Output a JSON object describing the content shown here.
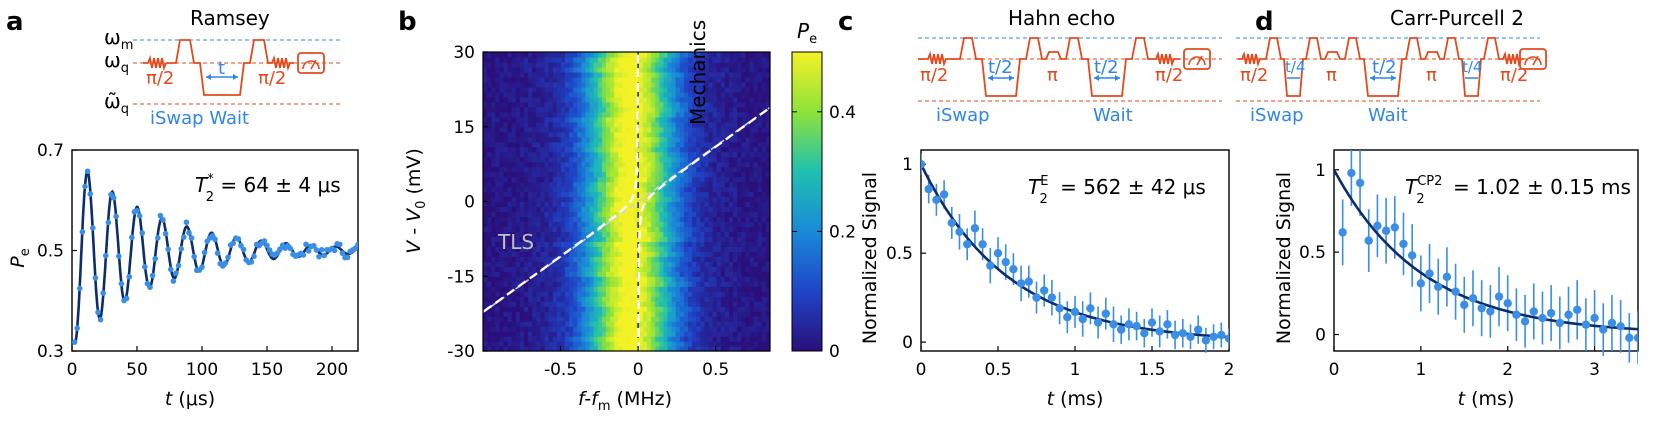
{
  "colors": {
    "data": "#3a8ee6",
    "fit": "#0c2d6b",
    "seq_red": "#e24a1e",
    "seq_blue": "#2f86e6"
  },
  "labels": {
    "omega_m": "ω",
    "omega_m_sub": "m",
    "omega_q": "ω",
    "omega_q_sub": "q",
    "omega_q_tilde": "ω̃",
    "omega_q_tilde_sub": "q",
    "pi2": "π/2",
    "pi": "π",
    "t": "t",
    "t2": "t/2",
    "t4": "t/4",
    "iswap": "iSwap",
    "wait": "Wait",
    "iswap_wait": "iSwap Wait"
  },
  "chart_data": [
    {
      "id": "a",
      "panel_label": "a",
      "type": "scatter",
      "title": "Ramsey",
      "xlabel": "t (μs)",
      "xlabel_italic": "t",
      "xlabel_unit": " (μs)",
      "ylabel": "P",
      "ylabel_sub": "e",
      "xlim": [
        0,
        220
      ],
      "ylim": [
        0.3,
        0.7
      ],
      "xticks": [
        0,
        50,
        100,
        150,
        200
      ],
      "yticks": [
        0.3,
        0.5,
        0.7
      ],
      "ytick_labels": [
        "0.3",
        "0.5",
        "0.7"
      ],
      "annotation": {
        "sym": "T",
        "sup": "*",
        "sub": "2",
        "text": " = 64 ± 4 μs"
      },
      "fit": {
        "offset": 0.5,
        "amplitude": 0.19,
        "T2": 64,
        "period": 19.1,
        "phase_at": 12
      },
      "series": [
        {
          "name": "data",
          "x_start": 2,
          "x_step": 2,
          "count": 110
        }
      ]
    },
    {
      "id": "b",
      "panel_label": "b",
      "type": "heatmap",
      "xlabel": "f-f",
      "xlabel_sub": "m",
      "xlabel_unit": " (MHz)",
      "ylabel": "V - V",
      "ylabel_sub": "0",
      "ylabel_unit": " (mV)",
      "xlim": [
        -1.0,
        0.85
      ],
      "ylim": [
        -30,
        30
      ],
      "xticks": [
        -0.5,
        0,
        0.5
      ],
      "xtick_labels": [
        "-0.5",
        "0",
        "0.5"
      ],
      "yticks": [
        -30,
        -15,
        0,
        15,
        30
      ],
      "ytick_labels": [
        "-30",
        "-15",
        "0",
        "15",
        "30"
      ],
      "colorbar": {
        "label": "P",
        "label_sub": "e",
        "min": 0,
        "max": 0.5,
        "ticks": [
          0,
          0.2,
          0.4
        ],
        "tick_labels": [
          "0",
          "0.2",
          "0.4"
        ]
      },
      "annotations": {
        "mechanics": "Mechanics",
        "tls": "TLS"
      }
    },
    {
      "id": "c",
      "panel_label": "c",
      "type": "scatter",
      "title": "Hahn echo",
      "xlabel_italic": "t",
      "xlabel_unit": " (ms)",
      "ylabel": "Normalized Signal",
      "xlim": [
        0,
        2
      ],
      "ylim": [
        -0.05,
        1.08
      ],
      "xticks": [
        0,
        0.5,
        1,
        1.5,
        2
      ],
      "xtick_labels": [
        "0",
        "0.5",
        "1",
        "1.5",
        "2"
      ],
      "yticks": [
        0,
        0.5,
        1
      ],
      "ytick_labels": [
        "0",
        "0.5",
        "1"
      ],
      "annotation": {
        "sym": "T",
        "sup": "E",
        "sub": "2",
        "text": " = 562 ± 42 μs"
      },
      "fit": {
        "T2": 0.562
      },
      "x": [
        0,
        0.05,
        0.1,
        0.15,
        0.2,
        0.25,
        0.3,
        0.35,
        0.4,
        0.45,
        0.5,
        0.55,
        0.6,
        0.65,
        0.7,
        0.75,
        0.8,
        0.85,
        0.9,
        0.95,
        1.0,
        1.05,
        1.1,
        1.15,
        1.2,
        1.25,
        1.3,
        1.35,
        1.4,
        1.45,
        1.5,
        1.55,
        1.6,
        1.65,
        1.7,
        1.75,
        1.8,
        1.85,
        1.9,
        1.95,
        2.0
      ],
      "y": [
        1.0,
        0.86,
        0.8,
        0.83,
        0.67,
        0.62,
        0.55,
        0.64,
        0.55,
        0.43,
        0.5,
        0.45,
        0.41,
        0.33,
        0.34,
        0.25,
        0.29,
        0.25,
        0.19,
        0.14,
        0.17,
        0.13,
        0.19,
        0.11,
        0.16,
        0.1,
        0.07,
        0.1,
        0.09,
        0.05,
        0.11,
        0.06,
        0.1,
        0.04,
        0.05,
        0.03,
        0.07,
        0.01,
        0.03,
        0.04,
        0.02
      ],
      "err": [
        0.06,
        0.08,
        0.09,
        0.08,
        0.09,
        0.1,
        0.09,
        0.1,
        0.09,
        0.1,
        0.09,
        0.1,
        0.09,
        0.1,
        0.09,
        0.09,
        0.09,
        0.1,
        0.09,
        0.09,
        0.09,
        0.1,
        0.09,
        0.09,
        0.09,
        0.1,
        0.08,
        0.09,
        0.08,
        0.08,
        0.08,
        0.09,
        0.08,
        0.08,
        0.08,
        0.07,
        0.08,
        0.07,
        0.07,
        0.07,
        0.06
      ]
    },
    {
      "id": "d",
      "panel_label": "d",
      "type": "scatter",
      "title": "Carr-Purcell 2",
      "xlabel_italic": "t",
      "xlabel_unit": " (ms)",
      "ylabel": "Normalized Signal",
      "xlim": [
        0,
        3.5
      ],
      "ylim": [
        -0.1,
        1.12
      ],
      "xticks": [
        0,
        1,
        2,
        3
      ],
      "xtick_labels": [
        "0",
        "1",
        "2",
        "3"
      ],
      "yticks": [
        0,
        0.5,
        1
      ],
      "ytick_labels": [
        "0",
        "0.5",
        "1"
      ],
      "annotation": {
        "sym": "T",
        "sup": "CP2",
        "sub": "2",
        "text": " = 1.02 ± 0.15 ms"
      },
      "fit": {
        "T2": 1.02
      },
      "x": [
        0.1,
        0.2,
        0.3,
        0.4,
        0.5,
        0.6,
        0.7,
        0.8,
        0.9,
        1.0,
        1.1,
        1.2,
        1.3,
        1.4,
        1.5,
        1.6,
        1.7,
        1.8,
        1.9,
        2.0,
        2.1,
        2.2,
        2.3,
        2.4,
        2.5,
        2.6,
        2.7,
        2.8,
        2.9,
        3.0,
        3.1,
        3.2,
        3.3,
        3.4,
        3.5
      ],
      "y": [
        0.62,
        0.98,
        0.92,
        0.57,
        0.66,
        0.63,
        0.65,
        0.55,
        0.48,
        0.31,
        0.37,
        0.29,
        0.35,
        0.26,
        0.18,
        0.22,
        0.16,
        0.14,
        0.23,
        0.19,
        0.12,
        0.08,
        0.14,
        0.1,
        0.13,
        0.07,
        0.12,
        0.15,
        0.06,
        0.1,
        0.03,
        0.07,
        0.05,
        -0.02,
        -0.02
      ],
      "err": [
        0.2,
        0.2,
        0.2,
        0.19,
        0.19,
        0.2,
        0.19,
        0.19,
        0.19,
        0.17,
        0.18,
        0.17,
        0.18,
        0.17,
        0.17,
        0.17,
        0.17,
        0.16,
        0.18,
        0.17,
        0.16,
        0.16,
        0.17,
        0.16,
        0.17,
        0.16,
        0.17,
        0.18,
        0.16,
        0.17,
        0.16,
        0.17,
        0.16,
        0.15,
        0.16
      ]
    }
  ]
}
